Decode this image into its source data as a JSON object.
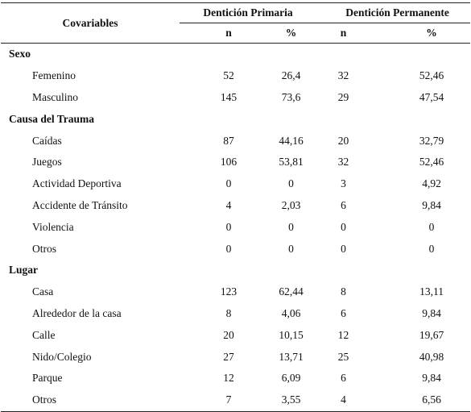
{
  "header": {
    "covariables": "Covariables",
    "group_primary": "Dentición Primaria",
    "group_permanent": "Dentición Permanente",
    "n": "n",
    "pct": "%"
  },
  "sections": [
    {
      "title": "Sexo",
      "rows": [
        {
          "label": "Femenino",
          "values": [
            "52",
            "26,4",
            "32",
            "52,46"
          ]
        },
        {
          "label": "Masculino",
          "values": [
            "145",
            "73,6",
            "29",
            "47,54"
          ]
        }
      ]
    },
    {
      "title": "Causa del Trauma",
      "rows": [
        {
          "label": "Caídas",
          "values": [
            "87",
            "44,16",
            "20",
            "32,79"
          ]
        },
        {
          "label": "Juegos",
          "values": [
            "106",
            "53,81",
            "32",
            "52,46"
          ]
        },
        {
          "label": "Actividad Deportiva",
          "values": [
            "0",
            "0",
            "3",
            "4,92"
          ]
        },
        {
          "label": "Accidente de Tránsito",
          "values": [
            "4",
            "2,03",
            "6",
            "9,84"
          ]
        },
        {
          "label": "Violencia",
          "values": [
            "0",
            "0",
            "0",
            "0"
          ]
        },
        {
          "label": "Otros",
          "values": [
            "0",
            "0",
            "0",
            "0"
          ]
        }
      ]
    },
    {
      "title": "Lugar",
      "rows": [
        {
          "label": "Casa",
          "values": [
            "123",
            "62,44",
            "8",
            "13,11"
          ]
        },
        {
          "label": "Alrededor de la casa",
          "values": [
            "8",
            "4,06",
            "6",
            "9,84"
          ]
        },
        {
          "label": "Calle",
          "values": [
            "20",
            "10,15",
            "12",
            "19,67"
          ]
        },
        {
          "label": "Nido/Colegio",
          "values": [
            "27",
            "13,71",
            "25",
            "40,98"
          ]
        },
        {
          "label": "Parque",
          "values": [
            "12",
            "6,09",
            "6",
            "9,84"
          ]
        },
        {
          "label": "Otros",
          "values": [
            "7",
            "3,55",
            "4",
            "6,56"
          ]
        }
      ]
    }
  ]
}
